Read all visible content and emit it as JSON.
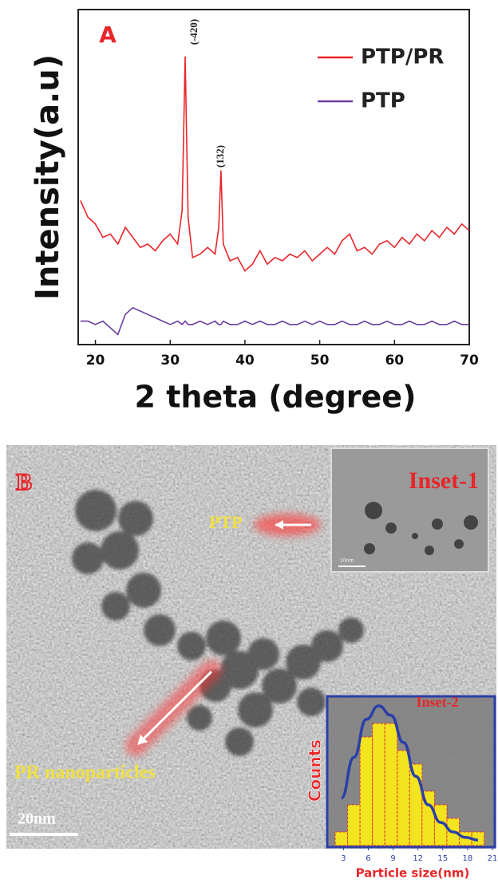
{
  "chart_data": [
    {
      "type": "line",
      "panel_label": "A",
      "x_label": "2 theta (degree)",
      "y_label": "Intensity(a.u)",
      "annotations": [
        "(-420)",
        "(132)"
      ],
      "x": [
        18,
        19,
        20,
        21,
        22,
        23,
        24,
        25,
        26,
        27,
        28,
        29,
        30,
        31,
        31.6,
        32,
        32.4,
        33,
        34,
        35,
        36,
        36.5,
        36.8,
        37.1,
        38,
        39,
        40,
        41,
        42,
        43,
        44,
        45,
        46,
        47,
        48,
        49,
        50,
        51,
        52,
        53,
        54,
        55,
        56,
        57,
        58,
        59,
        60,
        61,
        62,
        63,
        64,
        65,
        66,
        67,
        68,
        69,
        70
      ],
      "series": [
        {
          "name": "PTP/PR",
          "color": "#e8262a",
          "values": [
            43,
            38,
            36,
            32,
            33,
            30,
            35,
            32,
            29,
            30,
            28,
            31,
            33,
            30,
            40,
            86,
            38,
            26,
            27,
            29,
            27,
            35,
            52,
            30,
            25,
            26,
            22,
            24,
            28,
            24,
            26,
            25,
            27,
            26,
            28,
            25,
            27,
            29,
            27,
            31,
            33,
            28,
            29,
            27,
            30,
            31,
            29,
            32,
            30,
            33,
            31,
            34,
            32,
            35,
            33,
            36,
            34
          ]
        },
        {
          "name": "PTP",
          "color": "#6a3fa0",
          "values": [
            7,
            7,
            6,
            7,
            5,
            3,
            9,
            11,
            10,
            9,
            8,
            7,
            6,
            7,
            6,
            7,
            6,
            6,
            7,
            6,
            7,
            6,
            6,
            7,
            6,
            6,
            7,
            6,
            7,
            6,
            6,
            7,
            6,
            6,
            7,
            6,
            7,
            6,
            6,
            7,
            6,
            6,
            7,
            6,
            6,
            7,
            6,
            6,
            7,
            6,
            6,
            7,
            6,
            6,
            7,
            6,
            6
          ]
        }
      ],
      "xlim": [
        17.7,
        70
      ],
      "xticks": [
        20,
        30,
        40,
        50,
        60,
        70
      ],
      "ylim": [
        0,
        100
      ],
      "legend": "upper right"
    },
    {
      "type": "histogram",
      "title": "Inset-2",
      "x_label": "Particle size(nm)",
      "y_label": "Counts",
      "bins": [
        2,
        3.5,
        5,
        6.5,
        8,
        9.5,
        11,
        12.5,
        14,
        15.5,
        17,
        18.5,
        20
      ],
      "counts": [
        1,
        3,
        8,
        9,
        9,
        7,
        6,
        4,
        3,
        2,
        1,
        1
      ],
      "color": "#f2e41e",
      "edge_color": "#e03030",
      "fit_values": [
        3.5,
        6.5,
        9.3,
        10.3,
        9.6,
        7.6,
        5.1,
        3.0,
        1.7,
        1.0,
        0.6,
        0.4
      ],
      "fit_color": "#2a3fa8",
      "xlim": [
        2,
        21
      ],
      "xticks": [
        3,
        6,
        9,
        12,
        15,
        18,
        21
      ],
      "ylim": [
        0,
        11
      ]
    }
  ],
  "image": {
    "panel_label": "B",
    "labels": [
      "PTP",
      "PR nanoparticles"
    ],
    "inset": "Inset-1",
    "inset_scale_bar": "10nm",
    "scale_bar": "20nm"
  }
}
